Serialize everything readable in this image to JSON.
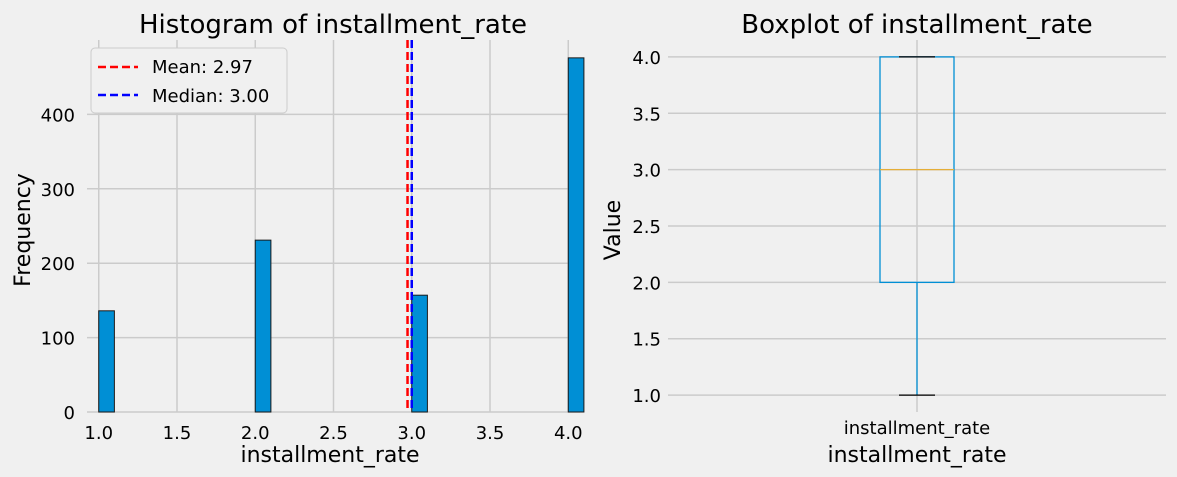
{
  "chart_data": [
    {
      "type": "bar",
      "title": "Histogram of installment_rate",
      "xlabel": "installment_rate",
      "ylabel": "Frequency",
      "xlim": [
        0.925,
        4.075
      ],
      "ylim": [
        0,
        500
      ],
      "xticks": [
        "1.0",
        "1.5",
        "2.0",
        "2.5",
        "3.0",
        "3.5",
        "4.0"
      ],
      "yticks": [
        "0",
        "100",
        "200",
        "300",
        "400"
      ],
      "bins": [
        {
          "x": 1.0,
          "value": 136
        },
        {
          "x": 2.0,
          "value": 231
        },
        {
          "x": 3.0,
          "value": 157
        },
        {
          "x": 4.0,
          "value": 476
        }
      ],
      "reference_lines": [
        {
          "name": "Mean: 2.97",
          "x": 2.973,
          "color": "#ff0000"
        },
        {
          "name": "Median: 3.00",
          "x": 3.0,
          "color": "#0000ff"
        }
      ],
      "legend_position": "top-left",
      "bar_color": "#008fd5",
      "grid": true
    },
    {
      "type": "box",
      "title": "Boxplot of installment_rate",
      "xlabel": "installment_rate",
      "ylabel": "Value",
      "categories": [
        "installment_rate"
      ],
      "stats": {
        "whisker_low": 1.0,
        "q1": 2.0,
        "median": 3.0,
        "q3": 4.0,
        "whisker_high": 4.0
      },
      "ylim": [
        0.85,
        4.15
      ],
      "yticks": [
        "1.0",
        "1.5",
        "2.0",
        "2.5",
        "3.0",
        "3.5",
        "4.0"
      ],
      "box_color": "#008fd5",
      "median_color": "#e5ae38",
      "grid": true
    }
  ]
}
